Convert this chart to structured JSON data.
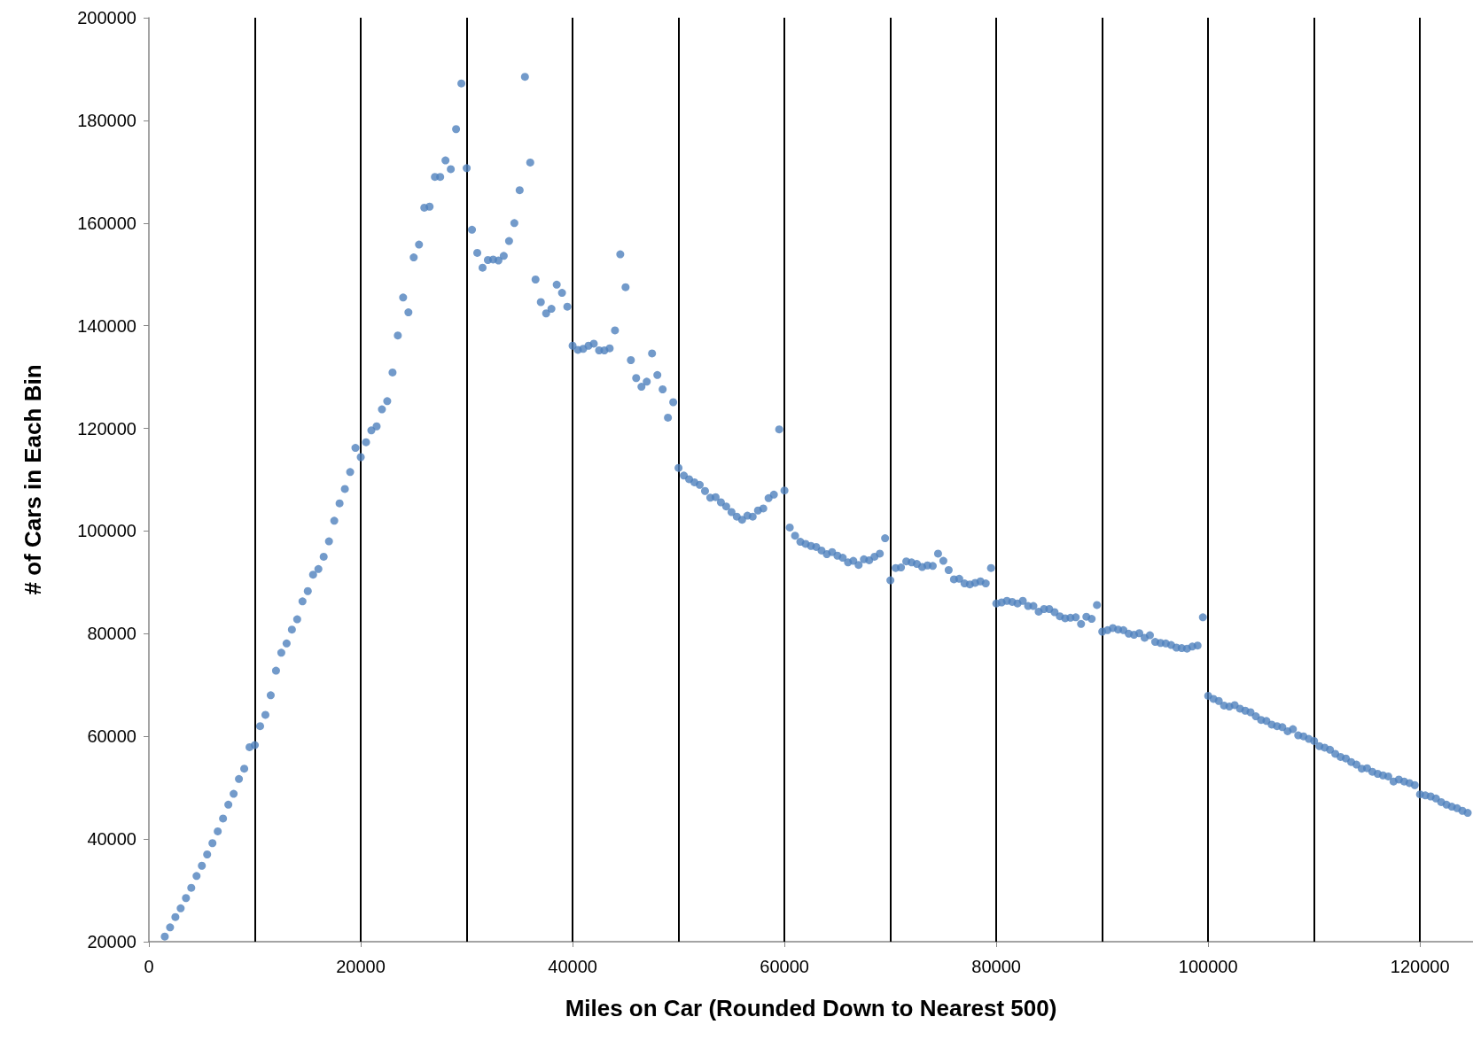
{
  "chart_data": {
    "type": "scatter",
    "xlabel": "Miles on Car (Rounded Down to Nearest 500)",
    "ylabel": "# of Cars in Each Bin",
    "xlim": [
      0,
      125000
    ],
    "xticks": [
      0,
      20000,
      40000,
      60000,
      80000,
      100000,
      120000
    ],
    "ylim": [
      20000,
      200000
    ],
    "yticks": [
      20000,
      40000,
      60000,
      80000,
      100000,
      120000,
      140000,
      160000,
      180000,
      200000
    ],
    "grid": false,
    "marker": "circle",
    "ref_lines": [
      {
        "axis": "x",
        "value": 10000,
        "color": "#000000"
      },
      {
        "axis": "x",
        "value": 20000,
        "color": "#000000"
      },
      {
        "axis": "x",
        "value": 30000,
        "color": "#000000"
      },
      {
        "axis": "x",
        "value": 40000,
        "color": "#000000"
      },
      {
        "axis": "x",
        "value": 50000,
        "color": "#000000"
      },
      {
        "axis": "x",
        "value": 60000,
        "color": "#000000"
      },
      {
        "axis": "x",
        "value": 70000,
        "color": "#000000"
      },
      {
        "axis": "x",
        "value": 80000,
        "color": "#000000"
      },
      {
        "axis": "x",
        "value": 90000,
        "color": "#000000"
      },
      {
        "axis": "x",
        "value": 100000,
        "color": "#000000"
      },
      {
        "axis": "x",
        "value": 110000,
        "color": "#000000"
      },
      {
        "axis": "x",
        "value": 120000,
        "color": "#000000"
      }
    ],
    "series": [
      {
        "color": "#4f81bd",
        "x": [
          1500,
          2000,
          2500,
          3000,
          3500,
          4000,
          4500,
          5000,
          5500,
          6000,
          6500,
          7000,
          7500,
          8000,
          8500,
          9000,
          9500,
          10000,
          10500,
          11000,
          11500,
          12000,
          12500,
          13000,
          13500,
          14000,
          14500,
          15000,
          15500,
          16000,
          16500,
          17000,
          17500,
          18000,
          18500,
          19000,
          19500,
          20000,
          20500,
          21000,
          21500,
          22000,
          22500,
          23000,
          23500,
          24000,
          24500,
          25000,
          25500,
          26000,
          26500,
          27000,
          27500,
          28000,
          28500,
          29000,
          29500,
          30000,
          30500,
          31000,
          31500,
          32000,
          32500,
          33000,
          33500,
          34000,
          34500,
          35000,
          35500,
          36000,
          36500,
          37000,
          37500,
          38000,
          38500,
          39000,
          39500,
          40000,
          40500,
          41000,
          41500,
          42000,
          42500,
          43000,
          43500,
          44000,
          44500,
          45000,
          45500,
          46000,
          46500,
          47000,
          47500,
          48000,
          48500,
          49000,
          49500,
          50000,
          50500,
          51000,
          51500,
          52000,
          52500,
          53000,
          53500,
          54000,
          54500,
          55000,
          55500,
          56000,
          56500,
          57000,
          57500,
          58000,
          58500,
          59000,
          59500,
          60000,
          60500,
          61000,
          61500,
          62000,
          62500,
          63000,
          63500,
          64000,
          64500,
          65000,
          65500,
          66000,
          66500,
          67000,
          67500,
          68000,
          68500,
          69000,
          69500,
          70000,
          70500,
          71000,
          71500,
          72000,
          72500,
          73000,
          73500,
          74000,
          74500,
          75000,
          75500,
          76000,
          76500,
          77000,
          77500,
          78000,
          78500,
          79000,
          79500,
          80000,
          80500,
          81000,
          81500,
          82000,
          82500,
          83000,
          83500,
          84000,
          84500,
          85000,
          85500,
          86000,
          86500,
          87000,
          87500,
          88000,
          88500,
          89000,
          89500,
          90000,
          90500,
          91000,
          91500,
          92000,
          92500,
          93000,
          93500,
          94000,
          94500,
          95000,
          95500,
          96000,
          96500,
          97000,
          97500,
          98000,
          98500,
          99000,
          99500,
          100000,
          100500,
          101000,
          101500,
          102000,
          102500,
          103000,
          103500,
          104000,
          104500,
          105000,
          105500,
          106000,
          106500,
          107000,
          107500,
          108000,
          108500,
          109000,
          109500,
          110000,
          110500,
          111000,
          111500,
          112000,
          112500,
          113000,
          113500,
          114000,
          114500,
          115000,
          115500,
          116000,
          116500,
          117000,
          117500,
          118000,
          118500,
          119000,
          119500,
          120000,
          120500,
          121000,
          121500,
          122000,
          122500,
          123000,
          123500,
          124000,
          124500
        ],
        "values": [
          21000,
          22800,
          24800,
          26500,
          28500,
          30500,
          32800,
          34800,
          37000,
          39200,
          41500,
          44000,
          46700,
          48800,
          51700,
          53700,
          57900,
          58300,
          62000,
          64200,
          68000,
          72800,
          76300,
          78100,
          80800,
          82800,
          86300,
          88300,
          91500,
          92600,
          95000,
          98000,
          102000,
          105400,
          108200,
          111500,
          116200,
          114400,
          117300,
          119600,
          120400,
          123700,
          125300,
          130900,
          138100,
          145500,
          142600,
          153300,
          155800,
          163000,
          163200,
          169000,
          169000,
          172200,
          170500,
          178300,
          187200,
          170700,
          158700,
          154200,
          151300,
          152800,
          152900,
          152700,
          153600,
          156500,
          160000,
          166400,
          188500,
          171800,
          149000,
          144600,
          142400,
          143300,
          148000,
          146400,
          143700,
          136100,
          135300,
          135500,
          136100,
          136500,
          135200,
          135200,
          135600,
          139100,
          153900,
          147500,
          133300,
          129800,
          128100,
          129100,
          134600,
          130400,
          127600,
          122100,
          125100,
          112300,
          110800,
          110100,
          109500,
          109000,
          107800,
          106500,
          106600,
          105600,
          104800,
          103700,
          102800,
          102200,
          103000,
          102800,
          104000,
          104400,
          106400,
          107100,
          119800,
          107900,
          100700,
          99100,
          97900,
          97500,
          97100,
          96900,
          96200,
          95500,
          95900,
          95200,
          94800,
          93900,
          94200,
          93400,
          94500,
          94300,
          95000,
          95600,
          98600,
          90400,
          92800,
          92900,
          94100,
          93900,
          93600,
          93000,
          93300,
          93200,
          95600,
          94200,
          92400,
          90600,
          90700,
          89800,
          89600,
          89900,
          90200,
          89800,
          92800,
          85900,
          86100,
          86400,
          86200,
          85900,
          86400,
          85400,
          85400,
          84300,
          84800,
          84800,
          84200,
          83400,
          83000,
          83100,
          83200,
          81900,
          83300,
          82900,
          85600,
          80400,
          80700,
          81100,
          80800,
          80700,
          80000,
          79800,
          80100,
          79200,
          79700,
          78400,
          78200,
          78100,
          77800,
          77300,
          77200,
          77100,
          77500,
          77700,
          83200,
          67900,
          67300,
          66900,
          66000,
          65800,
          66100,
          65400,
          65000,
          64700,
          63900,
          63200,
          63000,
          62300,
          62000,
          61800,
          61000,
          61400,
          60200,
          60000,
          59500,
          59100,
          58100,
          57800,
          57400,
          56600,
          56000,
          55700,
          55000,
          54500,
          53700,
          53800,
          53100,
          52700,
          52400,
          52200,
          51200,
          51600,
          51200,
          50900,
          50500,
          48700,
          48500,
          48300,
          47900,
          47200,
          46700,
          46300,
          46000,
          45500,
          45100
        ]
      }
    ]
  }
}
